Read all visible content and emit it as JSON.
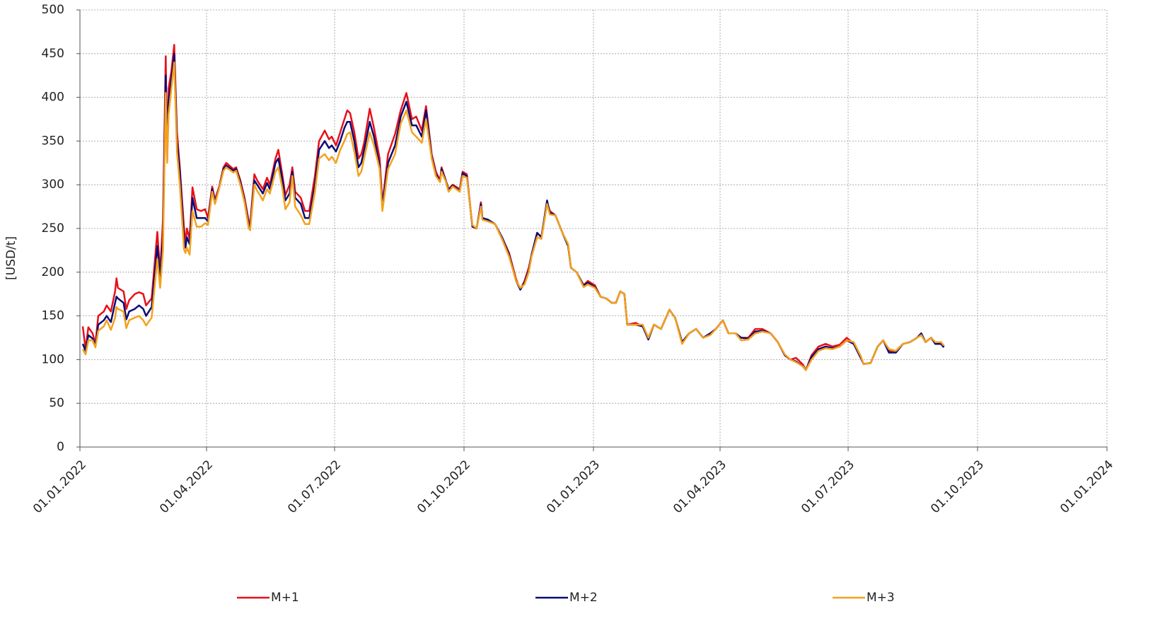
{
  "chart_data": {
    "type": "line",
    "y_label": "[USD/t]",
    "x": [
      "2022-01-03",
      "2022-01-05",
      "2022-01-07",
      "2022-01-10",
      "2022-01-12",
      "2022-01-14",
      "2022-01-18",
      "2022-01-20",
      "2022-01-23",
      "2022-01-26",
      "2022-01-27",
      "2022-01-28",
      "2022-02-01",
      "2022-02-03",
      "2022-02-05",
      "2022-02-09",
      "2022-02-12",
      "2022-02-15",
      "2022-02-17",
      "2022-02-21",
      "2022-02-25",
      "2022-02-27",
      "2022-03-01",
      "2022-03-03",
      "2022-03-04",
      "2022-03-05",
      "2022-03-07",
      "2022-03-09",
      "2022-03-11",
      "2022-03-13",
      "2022-03-16",
      "2022-03-17",
      "2022-03-18",
      "2022-03-20",
      "2022-03-22",
      "2022-03-25",
      "2022-03-28",
      "2022-03-31",
      "2022-04-02",
      "2022-04-05",
      "2022-04-07",
      "2022-04-10",
      "2022-04-13",
      "2022-04-15",
      "2022-04-20",
      "2022-04-22",
      "2022-04-25",
      "2022-04-28",
      "2022-05-01",
      "2022-05-02",
      "2022-05-05",
      "2022-05-07",
      "2022-05-09",
      "2022-05-11",
      "2022-05-14",
      "2022-05-16",
      "2022-05-20",
      "2022-05-22",
      "2022-05-25",
      "2022-05-27",
      "2022-05-30",
      "2022-06-01",
      "2022-06-03",
      "2022-06-07",
      "2022-06-10",
      "2022-06-13",
      "2022-06-17",
      "2022-06-20",
      "2022-06-24",
      "2022-06-27",
      "2022-06-29",
      "2022-07-02",
      "2022-07-05",
      "2022-07-08",
      "2022-07-10",
      "2022-07-12",
      "2022-07-15",
      "2022-07-18",
      "2022-07-20",
      "2022-07-22",
      "2022-07-26",
      "2022-07-29",
      "2022-08-02",
      "2022-08-04",
      "2022-08-08",
      "2022-08-13",
      "2022-08-17",
      "2022-08-21",
      "2022-08-25",
      "2022-08-28",
      "2022-09-01",
      "2022-09-04",
      "2022-09-08",
      "2022-09-11",
      "2022-09-14",
      "2022-09-15",
      "2022-09-18",
      "2022-09-20",
      "2022-09-23",
      "2022-09-28",
      "2022-09-30",
      "2022-10-03",
      "2022-10-07",
      "2022-10-10",
      "2022-10-13",
      "2022-10-14",
      "2022-10-18",
      "2022-10-23",
      "2022-10-28",
      "2022-11-02",
      "2022-11-07",
      "2022-11-10",
      "2022-11-13",
      "2022-11-16",
      "2022-11-18",
      "2022-11-22",
      "2022-11-25",
      "2022-11-29",
      "2022-12-01",
      "2022-12-05",
      "2022-12-10",
      "2022-12-14",
      "2022-12-16",
      "2022-12-20",
      "2022-12-25",
      "2022-12-28",
      "2023-01-02",
      "2023-01-06",
      "2023-01-10",
      "2023-01-14",
      "2023-01-17",
      "2023-01-20",
      "2023-01-23",
      "2023-01-25",
      "2023-01-31",
      "2023-02-05",
      "2023-02-09",
      "2023-02-13",
      "2023-02-18",
      "2023-02-24",
      "2023-02-28",
      "2023-03-05",
      "2023-03-10",
      "2023-03-15",
      "2023-03-20",
      "2023-03-25",
      "2023-03-29",
      "2023-04-03",
      "2023-04-07",
      "2023-04-12",
      "2023-04-16",
      "2023-04-21",
      "2023-04-26",
      "2023-05-01",
      "2023-05-07",
      "2023-05-12",
      "2023-05-17",
      "2023-05-21",
      "2023-05-25",
      "2023-05-30",
      "2023-06-01",
      "2023-06-05",
      "2023-06-10",
      "2023-06-15",
      "2023-06-20",
      "2023-06-25",
      "2023-06-30",
      "2023-07-05",
      "2023-07-10",
      "2023-07-12",
      "2023-07-17",
      "2023-07-22",
      "2023-07-26",
      "2023-07-30",
      "2023-08-04",
      "2023-08-09",
      "2023-08-14",
      "2023-08-19",
      "2023-08-22",
      "2023-08-25",
      "2023-08-29",
      "2023-09-01",
      "2023-09-05",
      "2023-09-07"
    ],
    "series": [
      {
        "name": "M+1",
        "color": "#e8101a",
        "values": [
          138,
          112,
          137,
          130,
          118,
          150,
          155,
          162,
          155,
          178,
          193,
          182,
          178,
          158,
          168,
          175,
          177,
          175,
          162,
          170,
          246,
          200,
          260,
          447,
          330,
          410,
          430,
          460,
          360,
          320,
          250,
          232,
          250,
          238,
          297,
          272,
          270,
          272,
          262,
          298,
          283,
          298,
          320,
          325,
          318,
          320,
          305,
          285,
          258,
          255,
          312,
          305,
          300,
          295,
          308,
          300,
          330,
          340,
          310,
          288,
          300,
          320,
          292,
          285,
          270,
          270,
          310,
          350,
          362,
          352,
          355,
          345,
          360,
          375,
          385,
          382,
          360,
          330,
          335,
          348,
          387,
          365,
          330,
          278,
          335,
          358,
          385,
          405,
          375,
          378,
          362,
          390,
          335,
          315,
          305,
          320,
          305,
          295,
          300,
          295,
          315,
          312,
          252,
          250,
          280,
          262,
          260,
          255,
          240,
          222,
          192,
          180,
          190,
          205,
          220,
          245,
          240,
          280,
          270,
          265,
          245,
          230,
          205,
          200,
          185,
          190,
          185,
          172,
          170,
          165,
          165,
          178,
          175,
          140,
          142,
          138,
          125,
          140,
          135,
          157,
          148,
          120,
          130,
          135,
          125,
          130,
          135,
          145,
          130,
          130,
          125,
          125,
          135,
          135,
          130,
          120,
          105,
          100,
          102,
          94,
          88,
          105,
          115,
          118,
          115,
          117,
          125,
          118,
          102,
          95,
          96,
          115,
          122,
          110,
          110,
          118,
          120,
          125,
          130,
          120,
          125,
          118,
          120,
          115
        ]
      },
      {
        "name": "M+2",
        "color": "#0b0b78",
        "values": [
          118,
          110,
          128,
          124,
          116,
          140,
          145,
          150,
          143,
          165,
          172,
          170,
          165,
          146,
          155,
          158,
          162,
          158,
          150,
          160,
          230,
          195,
          240,
          425,
          328,
          395,
          420,
          450,
          350,
          315,
          236,
          228,
          240,
          232,
          285,
          262,
          262,
          262,
          258,
          295,
          280,
          297,
          318,
          322,
          316,
          318,
          303,
          282,
          254,
          252,
          305,
          300,
          295,
          290,
          302,
          295,
          325,
          330,
          305,
          282,
          290,
          315,
          285,
          278,
          262,
          262,
          300,
          340,
          350,
          342,
          345,
          338,
          350,
          365,
          372,
          372,
          350,
          320,
          325,
          340,
          372,
          355,
          322,
          275,
          325,
          345,
          378,
          395,
          368,
          368,
          355,
          385,
          332,
          312,
          304,
          318,
          305,
          294,
          299,
          293,
          313,
          310,
          252,
          250,
          278,
          262,
          260,
          255,
          240,
          220,
          190,
          180,
          188,
          202,
          220,
          245,
          240,
          282,
          268,
          265,
          245,
          230,
          205,
          200,
          185,
          188,
          183,
          172,
          170,
          165,
          165,
          178,
          175,
          140,
          140,
          138,
          123,
          140,
          135,
          157,
          148,
          120,
          130,
          135,
          125,
          130,
          135,
          145,
          130,
          130,
          125,
          124,
          132,
          133,
          130,
          120,
          105,
          100,
          98,
          92,
          88,
          103,
          112,
          115,
          113,
          115,
          122,
          118,
          102,
          95,
          96,
          115,
          122,
          108,
          108,
          118,
          120,
          125,
          130,
          120,
          125,
          118,
          118,
          114
        ]
      },
      {
        "name": "M+3",
        "color": "#f4a11c",
        "values": [
          112,
          106,
          122,
          122,
          114,
          133,
          138,
          145,
          134,
          148,
          160,
          158,
          155,
          136,
          145,
          148,
          150,
          145,
          139,
          148,
          215,
          182,
          225,
          405,
          325,
          380,
          410,
          440,
          338,
          300,
          226,
          222,
          228,
          220,
          270,
          252,
          252,
          256,
          254,
          292,
          278,
          296,
          316,
          320,
          314,
          316,
          300,
          280,
          250,
          248,
          300,
          293,
          288,
          282,
          295,
          290,
          315,
          320,
          295,
          272,
          280,
          310,
          275,
          265,
          255,
          255,
          292,
          330,
          335,
          328,
          332,
          325,
          340,
          350,
          358,
          360,
          338,
          310,
          315,
          330,
          360,
          345,
          318,
          270,
          318,
          335,
          370,
          385,
          360,
          355,
          348,
          375,
          330,
          310,
          303,
          315,
          304,
          292,
          298,
          292,
          310,
          308,
          254,
          250,
          275,
          260,
          258,
          255,
          238,
          218,
          190,
          182,
          186,
          200,
          218,
          240,
          238,
          278,
          266,
          265,
          245,
          232,
          205,
          200,
          183,
          186,
          182,
          172,
          170,
          165,
          165,
          178,
          175,
          140,
          140,
          140,
          125,
          140,
          135,
          157,
          148,
          118,
          130,
          135,
          125,
          128,
          135,
          145,
          130,
          130,
          122,
          123,
          130,
          132,
          130,
          120,
          106,
          100,
          97,
          92,
          88,
          100,
          110,
          113,
          112,
          115,
          122,
          120,
          104,
          95,
          96,
          115,
          122,
          112,
          110,
          118,
          120,
          125,
          128,
          120,
          125,
          120,
          120,
          116
        ]
      }
    ],
    "xlim": [
      "2022-01-01",
      "2024-01-01"
    ],
    "xticks": [
      {
        "value": "2022-01-01",
        "label": "01.01.2022"
      },
      {
        "value": "2022-04-01",
        "label": "01.04.2022"
      },
      {
        "value": "2022-07-01",
        "label": "01.07.2022"
      },
      {
        "value": "2022-10-01",
        "label": "01.10.2022"
      },
      {
        "value": "2023-01-01",
        "label": "01.01.2023"
      },
      {
        "value": "2023-04-01",
        "label": "01.04.2023"
      },
      {
        "value": "2023-07-01",
        "label": "01.07.2023"
      },
      {
        "value": "2023-10-01",
        "label": "01.10.2023"
      },
      {
        "value": "2024-01-01",
        "label": "01.01.2024"
      }
    ],
    "ylim": [
      0,
      500
    ],
    "yticks": [
      0,
      50,
      100,
      150,
      200,
      250,
      300,
      350,
      400,
      450,
      500
    ],
    "grid": true,
    "legend": "bottom"
  }
}
